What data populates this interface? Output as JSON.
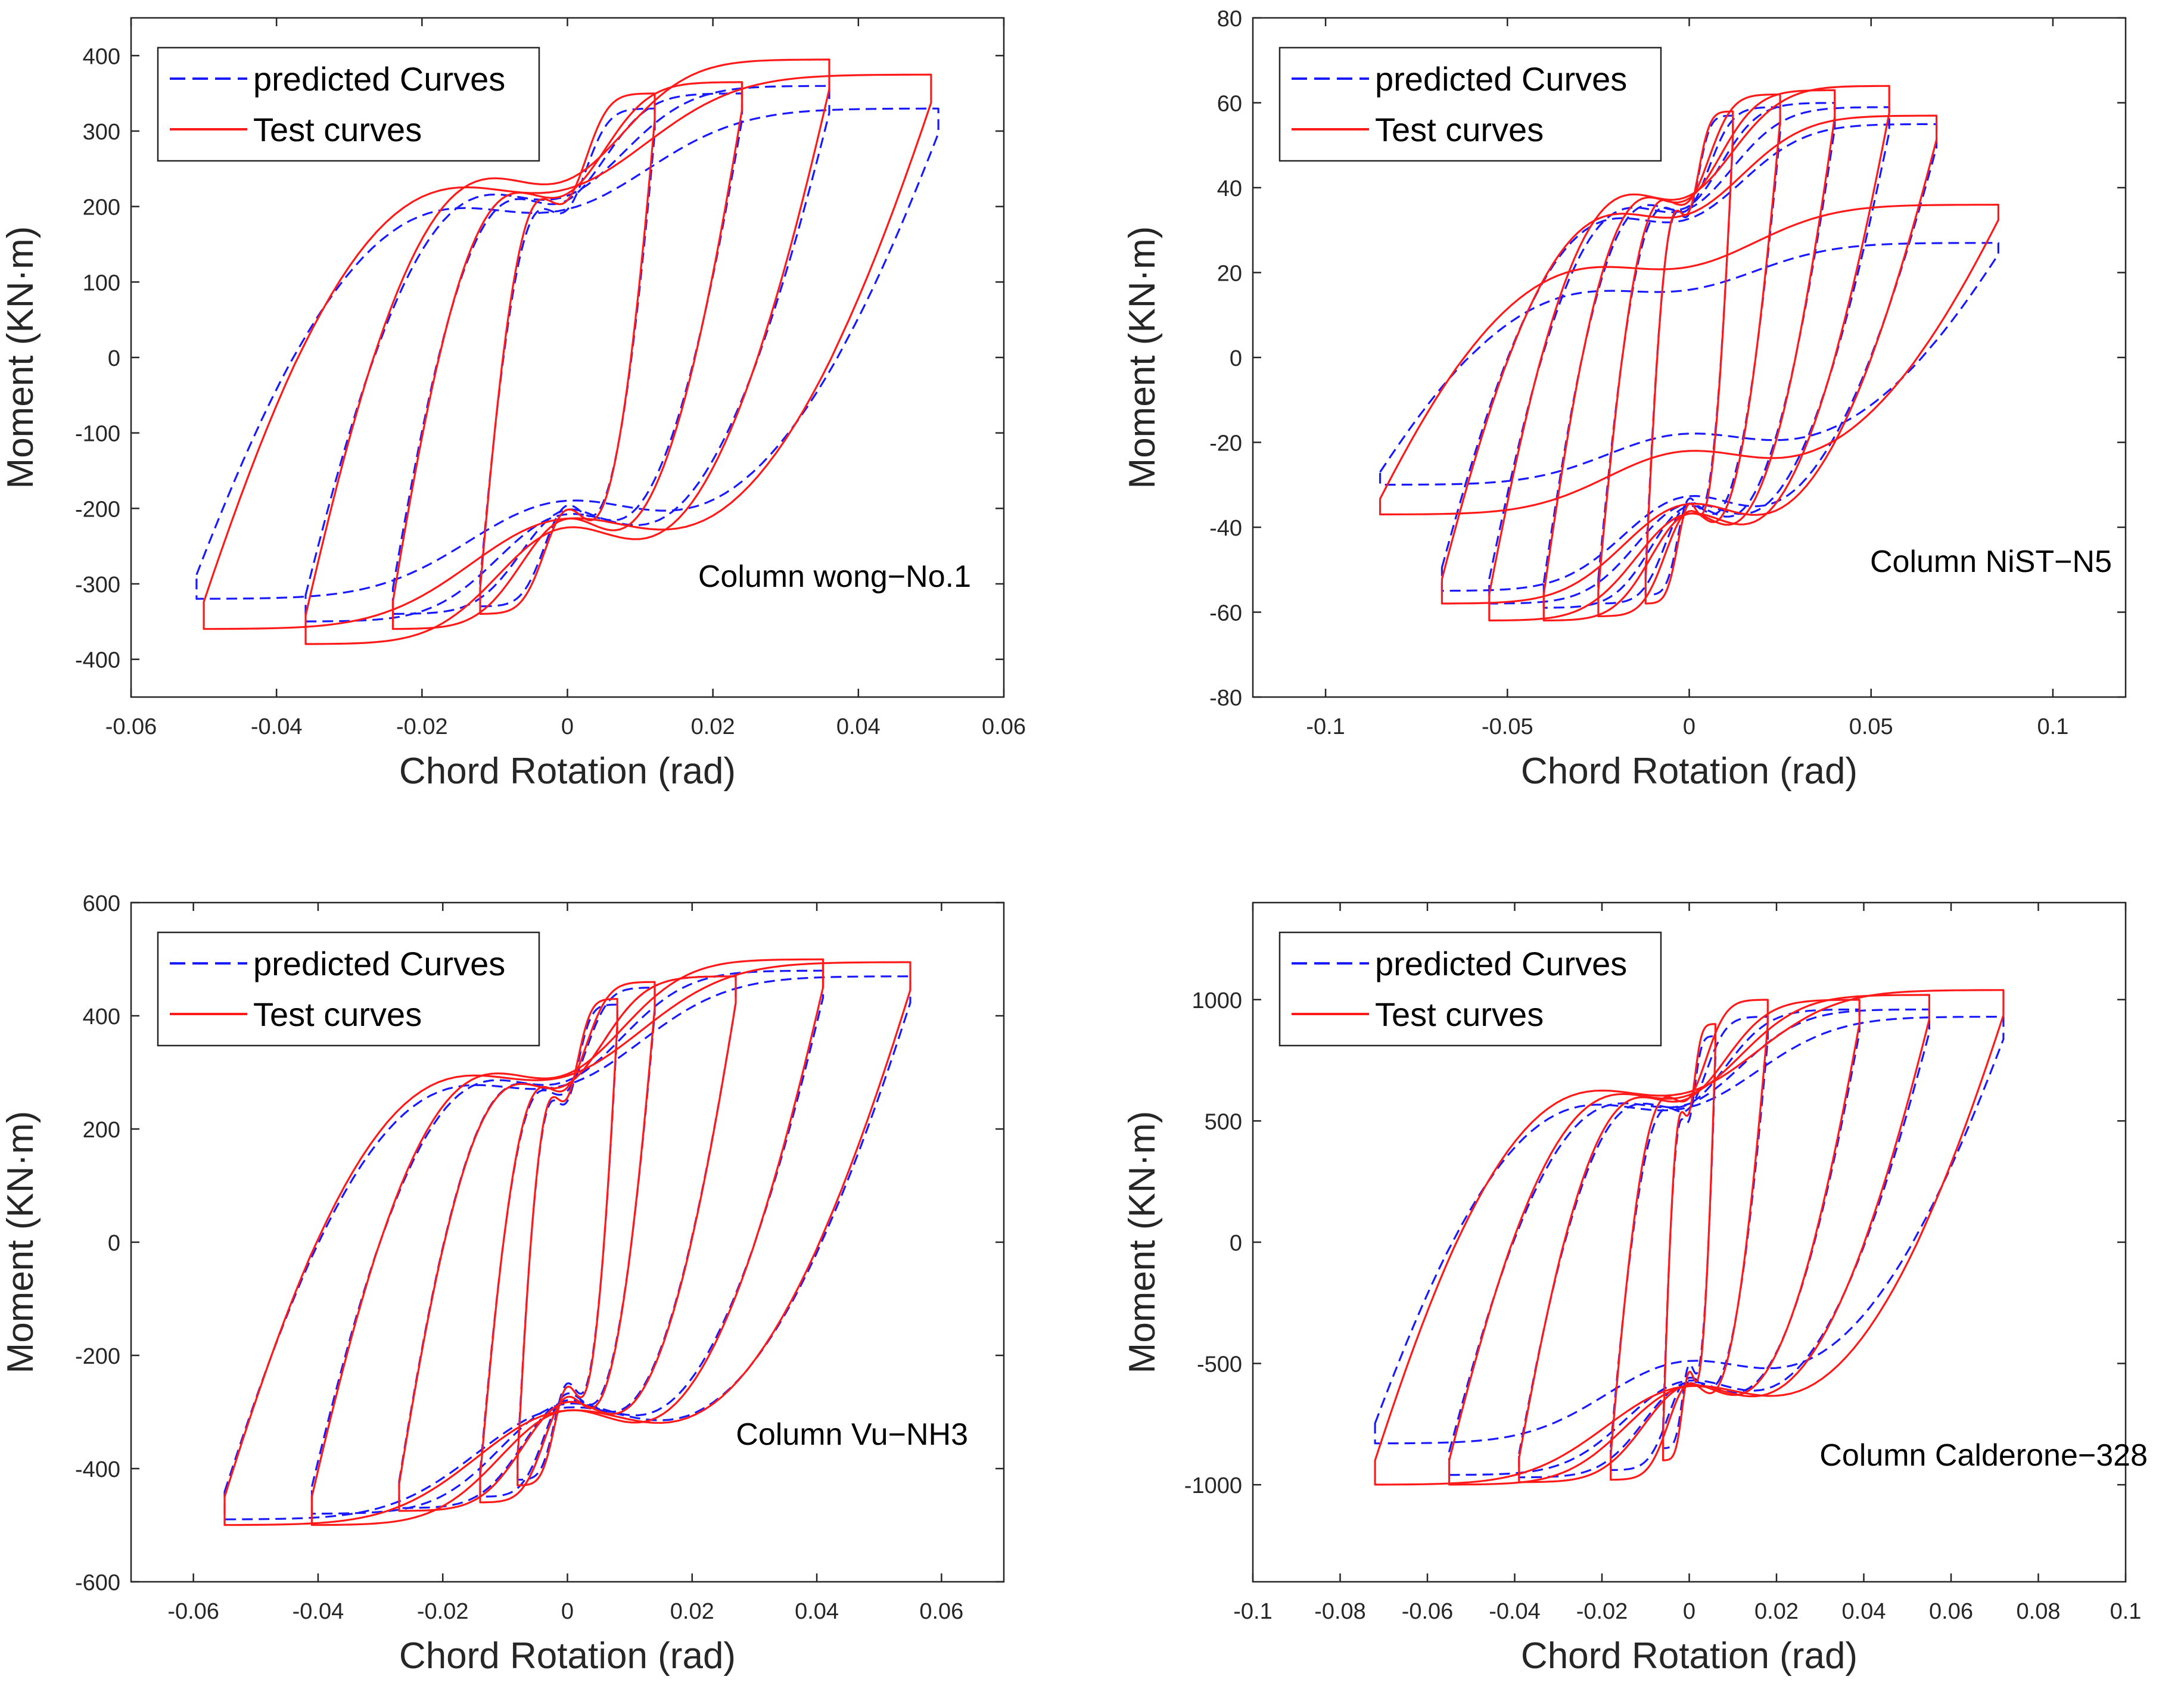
{
  "chart_data": [
    {
      "type": "line",
      "panel": "top-left",
      "annotation": "Column wong−No.1",
      "xlabel": "Chord Rotation (rad)",
      "ylabel": "Moment (KN·m)",
      "xlim": [
        -0.06,
        0.06
      ],
      "ylim": [
        -450,
        450
      ],
      "xticks": [
        -0.06,
        -0.04,
        -0.02,
        0,
        0.02,
        0.04,
        0.06
      ],
      "xtick_labels": [
        "-0.06",
        "-0.04",
        "-0.02",
        "0",
        "0.02",
        "0.04",
        "0.06"
      ],
      "yticks": [
        -400,
        -300,
        -200,
        -100,
        0,
        100,
        200,
        300,
        400
      ],
      "ytick_labels": [
        "-400",
        "-300",
        "-200",
        "-100",
        "0",
        "100",
        "200",
        "300",
        "400"
      ],
      "legend": {
        "position": "top-left",
        "entries": [
          "predicted Curves",
          "Test curves"
        ]
      },
      "series": [
        {
          "name": "predicted Curves",
          "style": "dashed",
          "color": "#1a1aff",
          "cycles": [
            {
              "amp": 0.012,
              "pos_peak": 330,
              "neg_peak": -330
            },
            {
              "amp": 0.024,
              "pos_peak": 350,
              "neg_peak": -340
            },
            {
              "amp": 0.036,
              "pos_peak": 360,
              "neg_peak": -350
            },
            {
              "amp": 0.051,
              "pos_peak": 330,
              "neg_peak": -320
            }
          ]
        },
        {
          "name": "Test curves",
          "style": "solid",
          "color": "#ff1a1a",
          "cycles": [
            {
              "amp": 0.012,
              "pos_peak": 350,
              "neg_peak": -340
            },
            {
              "amp": 0.024,
              "pos_peak": 365,
              "neg_peak": -360
            },
            {
              "amp": 0.036,
              "pos_peak": 395,
              "neg_peak": -380
            },
            {
              "amp": 0.05,
              "pos_peak": 375,
              "neg_peak": -360
            }
          ]
        }
      ]
    },
    {
      "type": "line",
      "panel": "top-right",
      "annotation": "Column NiST−N5",
      "xlabel": "Chord Rotation (rad)",
      "ylabel": "Moment (KN·m)",
      "xlim": [
        -0.12,
        0.12
      ],
      "ylim": [
        -80,
        80
      ],
      "xticks": [
        -0.1,
        -0.05,
        0,
        0.05,
        0.1
      ],
      "xtick_labels": [
        "-0.1",
        "-0.05",
        "0",
        "0.05",
        "0.1"
      ],
      "yticks": [
        -80,
        -60,
        -40,
        -20,
        0,
        20,
        40,
        60,
        80
      ],
      "ytick_labels": [
        "-80",
        "-60",
        "-40",
        "-20",
        "0",
        "20",
        "40",
        "60",
        "80"
      ],
      "legend": {
        "position": "top-left",
        "entries": [
          "predicted Curves",
          "Test curves"
        ]
      },
      "series": [
        {
          "name": "predicted Curves",
          "style": "dashed",
          "color": "#1a1aff",
          "cycles": [
            {
              "amp": 0.012,
              "pos_peak": 57,
              "neg_peak": -56
            },
            {
              "amp": 0.025,
              "pos_peak": 59,
              "neg_peak": -58
            },
            {
              "amp": 0.04,
              "pos_peak": 60,
              "neg_peak": -59
            },
            {
              "amp": 0.055,
              "pos_peak": 59,
              "neg_peak": -58
            },
            {
              "amp": 0.068,
              "pos_peak": 55,
              "neg_peak": -55
            },
            {
              "amp": 0.085,
              "pos_peak": 27,
              "neg_peak": -30
            }
          ]
        },
        {
          "name": "Test curves",
          "style": "solid",
          "color": "#ff1a1a",
          "cycles": [
            {
              "amp": 0.012,
              "pos_peak": 58,
              "neg_peak": -58
            },
            {
              "amp": 0.025,
              "pos_peak": 62,
              "neg_peak": -61
            },
            {
              "amp": 0.04,
              "pos_peak": 63,
              "neg_peak": -62
            },
            {
              "amp": 0.055,
              "pos_peak": 64,
              "neg_peak": -62
            },
            {
              "amp": 0.068,
              "pos_peak": 57,
              "neg_peak": -58
            },
            {
              "amp": 0.085,
              "pos_peak": 36,
              "neg_peak": -37
            }
          ]
        }
      ]
    },
    {
      "type": "line",
      "panel": "bottom-left",
      "annotation": "Column Vu−NH3",
      "xlabel": "Chord Rotation (rad)",
      "ylabel": "Moment (KN·m)",
      "xlim": [
        -0.07,
        0.07
      ],
      "ylim": [
        -600,
        600
      ],
      "xticks": [
        -0.06,
        -0.04,
        -0.02,
        0,
        0.02,
        0.04,
        0.06
      ],
      "xtick_labels": [
        "-0.06",
        "-0.04",
        "-0.02",
        "0",
        "0.02",
        "0.04",
        "0.06"
      ],
      "yticks": [
        -600,
        -400,
        -200,
        0,
        200,
        400,
        600
      ],
      "ytick_labels": [
        "-600",
        "-400",
        "-200",
        "0",
        "200",
        "400",
        "600"
      ],
      "legend": {
        "position": "top-left",
        "entries": [
          "predicted Curves",
          "Test curves"
        ]
      },
      "series": [
        {
          "name": "predicted Curves",
          "style": "dashed",
          "color": "#1a1aff",
          "cycles": [
            {
              "amp": 0.008,
              "pos_peak": 420,
              "neg_peak": -420
            },
            {
              "amp": 0.014,
              "pos_peak": 450,
              "neg_peak": -450
            },
            {
              "amp": 0.027,
              "pos_peak": 470,
              "neg_peak": -470
            },
            {
              "amp": 0.041,
              "pos_peak": 480,
              "neg_peak": -480
            },
            {
              "amp": 0.055,
              "pos_peak": 470,
              "neg_peak": -490
            }
          ]
        },
        {
          "name": "Test curves",
          "style": "solid",
          "color": "#ff1a1a",
          "cycles": [
            {
              "amp": 0.008,
              "pos_peak": 430,
              "neg_peak": -430
            },
            {
              "amp": 0.014,
              "pos_peak": 460,
              "neg_peak": -460
            },
            {
              "amp": 0.027,
              "pos_peak": 470,
              "neg_peak": -475
            },
            {
              "amp": 0.041,
              "pos_peak": 500,
              "neg_peak": -500
            },
            {
              "amp": 0.055,
              "pos_peak": 495,
              "neg_peak": -500
            }
          ]
        }
      ]
    },
    {
      "type": "line",
      "panel": "bottom-right",
      "annotation": "Column Calderone−328",
      "xlabel": "Chord Rotation (rad)",
      "ylabel": "Moment (KN·m)",
      "xlim": [
        -0.1,
        0.1
      ],
      "ylim": [
        -1400,
        1400
      ],
      "xticks": [
        -0.1,
        -0.08,
        -0.06,
        -0.04,
        -0.02,
        0,
        0.02,
        0.04,
        0.06,
        0.08,
        0.1
      ],
      "xtick_labels": [
        "-0.1",
        "-0.08",
        "-0.06",
        "-0.04",
        "-0.02",
        "0",
        "0.02",
        "0.04",
        "0.06",
        "0.08",
        "0.1"
      ],
      "yticks": [
        -1000,
        -500,
        0,
        500,
        1000
      ],
      "ytick_labels": [
        "-1000",
        "-500",
        "0",
        "500",
        "1000"
      ],
      "legend": {
        "position": "top-left",
        "entries": [
          "predicted Curves",
          "Test curves"
        ]
      },
      "series": [
        {
          "name": "predicted Curves",
          "style": "dashed",
          "color": "#1a1aff",
          "cycles": [
            {
              "amp": 0.006,
              "pos_peak": 850,
              "neg_peak": -850
            },
            {
              "amp": 0.018,
              "pos_peak": 930,
              "neg_peak": -940
            },
            {
              "amp": 0.039,
              "pos_peak": 960,
              "neg_peak": -970
            },
            {
              "amp": 0.055,
              "pos_peak": 960,
              "neg_peak": -960
            },
            {
              "amp": 0.072,
              "pos_peak": 930,
              "neg_peak": -830
            }
          ]
        },
        {
          "name": "Test curves",
          "style": "solid",
          "color": "#ff1a1a",
          "cycles": [
            {
              "amp": 0.006,
              "pos_peak": 900,
              "neg_peak": -900
            },
            {
              "amp": 0.018,
              "pos_peak": 1000,
              "neg_peak": -980
            },
            {
              "amp": 0.039,
              "pos_peak": 1000,
              "neg_peak": -990
            },
            {
              "amp": 0.055,
              "pos_peak": 1020,
              "neg_peak": -1000
            },
            {
              "amp": 0.072,
              "pos_peak": 1040,
              "neg_peak": -1000
            }
          ]
        }
      ]
    }
  ]
}
